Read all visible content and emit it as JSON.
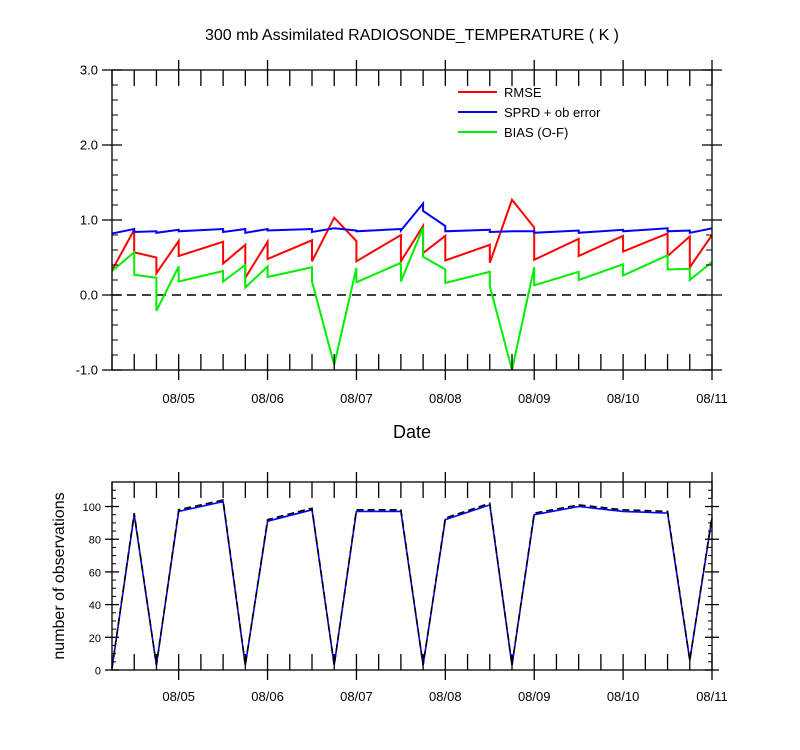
{
  "chart_data": [
    {
      "type": "line",
      "title": "300 mb Assimilated RADIOSONDE_TEMPERATURE ( K )",
      "xlabel": "Date",
      "ylabel": "",
      "xlim": [
        0,
        27
      ],
      "ylim": [
        -1.0,
        3.0
      ],
      "yticks": [
        -1.0,
        0.0,
        1.0,
        2.0,
        3.0
      ],
      "ytick_labels": [
        "-1.0",
        "0.0",
        "1.0",
        "2.0",
        "3.0"
      ],
      "xtick_positions": [
        3,
        7,
        11,
        15,
        19,
        23,
        27
      ],
      "xtick_labels": [
        "08/05",
        "08/06",
        "08/07",
        "08/08",
        "08/09",
        "08/10",
        "08/11"
      ],
      "grid": false,
      "zero_line": true,
      "legend": "top-right",
      "series": [
        {
          "name": "RMSE",
          "color": "#ff0000",
          "points": [
            [
              0,
              0.33
            ],
            [
              1,
              0.87
            ],
            [
              1,
              0.57
            ],
            [
              2,
              0.5
            ],
            [
              2,
              0.29
            ],
            [
              3,
              0.72
            ],
            [
              3,
              0.52
            ],
            [
              5,
              0.71
            ],
            [
              5,
              0.42
            ],
            [
              6,
              0.67
            ],
            [
              6,
              0.23
            ],
            [
              7,
              0.71
            ],
            [
              7,
              0.48
            ],
            [
              9,
              0.73
            ],
            [
              9,
              0.45
            ],
            [
              10,
              1.03
            ],
            [
              11,
              0.72
            ],
            [
              11,
              0.45
            ],
            [
              13,
              0.8
            ],
            [
              13,
              0.45
            ],
            [
              14,
              0.92
            ],
            [
              14,
              0.56
            ],
            [
              15,
              0.79
            ],
            [
              15,
              0.46
            ],
            [
              17,
              0.67
            ],
            [
              17,
              0.43
            ],
            [
              18,
              1.27
            ],
            [
              19,
              0.9
            ],
            [
              19,
              0.47
            ],
            [
              21,
              0.75
            ],
            [
              21,
              0.52
            ],
            [
              23,
              0.79
            ],
            [
              23,
              0.58
            ],
            [
              25,
              0.82
            ],
            [
              25,
              0.52
            ],
            [
              26,
              0.78
            ],
            [
              26,
              0.37
            ],
            [
              27,
              0.8
            ]
          ]
        },
        {
          "name": "SPRD + ob error",
          "color": "#0000ff",
          "points": [
            [
              0,
              0.82
            ],
            [
              1,
              0.88
            ],
            [
              1,
              0.84
            ],
            [
              2,
              0.85
            ],
            [
              2,
              0.83
            ],
            [
              3,
              0.87
            ],
            [
              3,
              0.85
            ],
            [
              5,
              0.88
            ],
            [
              5,
              0.84
            ],
            [
              6,
              0.88
            ],
            [
              6,
              0.83
            ],
            [
              7,
              0.88
            ],
            [
              7,
              0.86
            ],
            [
              9,
              0.88
            ],
            [
              9,
              0.84
            ],
            [
              10,
              0.89
            ],
            [
              11,
              0.86
            ],
            [
              11,
              0.85
            ],
            [
              13,
              0.88
            ],
            [
              13,
              0.86
            ],
            [
              14,
              1.22
            ],
            [
              14,
              1.12
            ],
            [
              15,
              0.92
            ],
            [
              15,
              0.85
            ],
            [
              17,
              0.87
            ],
            [
              17,
              0.84
            ],
            [
              18,
              0.85
            ],
            [
              19,
              0.85
            ],
            [
              19,
              0.83
            ],
            [
              21,
              0.86
            ],
            [
              21,
              0.83
            ],
            [
              23,
              0.87
            ],
            [
              23,
              0.85
            ],
            [
              25,
              0.89
            ],
            [
              25,
              0.85
            ],
            [
              26,
              0.86
            ],
            [
              26,
              0.83
            ],
            [
              27,
              0.89
            ]
          ]
        },
        {
          "name": "BIAS (O-F)",
          "color": "#00ee00",
          "points": [
            [
              0,
              0.32
            ],
            [
              1,
              0.57
            ],
            [
              1,
              0.27
            ],
            [
              2,
              0.23
            ],
            [
              2,
              -0.21
            ],
            [
              3,
              0.38
            ],
            [
              3,
              0.18
            ],
            [
              5,
              0.32
            ],
            [
              5,
              0.18
            ],
            [
              6,
              0.4
            ],
            [
              6,
              0.1
            ],
            [
              7,
              0.38
            ],
            [
              7,
              0.24
            ],
            [
              9,
              0.37
            ],
            [
              9,
              0.18
            ],
            [
              10,
              -0.93
            ],
            [
              11,
              0.36
            ],
            [
              11,
              0.17
            ],
            [
              13,
              0.43
            ],
            [
              13,
              0.18
            ],
            [
              14,
              0.9
            ],
            [
              14,
              0.51
            ],
            [
              15,
              0.34
            ],
            [
              15,
              0.16
            ],
            [
              17,
              0.31
            ],
            [
              17,
              0.12
            ],
            [
              18,
              -1.0
            ],
            [
              19,
              0.37
            ],
            [
              19,
              0.13
            ],
            [
              21,
              0.31
            ],
            [
              21,
              0.2
            ],
            [
              23,
              0.41
            ],
            [
              23,
              0.26
            ],
            [
              25,
              0.53
            ],
            [
              25,
              0.34
            ],
            [
              26,
              0.35
            ],
            [
              26,
              0.2
            ],
            [
              27,
              0.44
            ]
          ]
        }
      ]
    },
    {
      "type": "line",
      "title": "",
      "xlabel": "",
      "ylabel": "number of observations",
      "xlim": [
        0,
        27
      ],
      "ylim": [
        0,
        115
      ],
      "yticks": [
        0,
        20,
        40,
        60,
        80,
        100
      ],
      "ytick_labels": [
        "0",
        "20",
        "40",
        "60",
        "80",
        "100"
      ],
      "xtick_positions": [
        3,
        7,
        11,
        15,
        19,
        23,
        27
      ],
      "xtick_labels": [
        "08/05",
        "08/06",
        "08/07",
        "08/08",
        "08/09",
        "08/10",
        "08/11"
      ],
      "grid": false,
      "legend": "none",
      "series": [
        {
          "name": "",
          "color": "#0000ff",
          "style": "solid",
          "x": [
            0,
            1,
            2,
            3,
            5,
            6,
            7,
            9,
            10,
            11,
            13,
            14,
            15,
            17,
            18,
            19,
            21,
            23,
            25,
            26,
            27
          ],
          "values": [
            1,
            95,
            3,
            97,
            103,
            3,
            91,
            98,
            3,
            97,
            97,
            3,
            92,
            101,
            3,
            95,
            100,
            97,
            96,
            6,
            93
          ]
        },
        {
          "name": "",
          "color": "#000000",
          "style": "dashed",
          "x": [
            0,
            1,
            2,
            3,
            5,
            6,
            7,
            9,
            10,
            11,
            13,
            14,
            15,
            17,
            18,
            19,
            21,
            23,
            25,
            26,
            27
          ],
          "values": [
            1,
            96,
            3,
            98,
            104,
            3,
            92,
            99,
            3,
            98,
            98,
            3,
            93,
            102,
            3,
            96,
            101,
            98,
            97,
            6,
            94
          ]
        }
      ]
    }
  ]
}
